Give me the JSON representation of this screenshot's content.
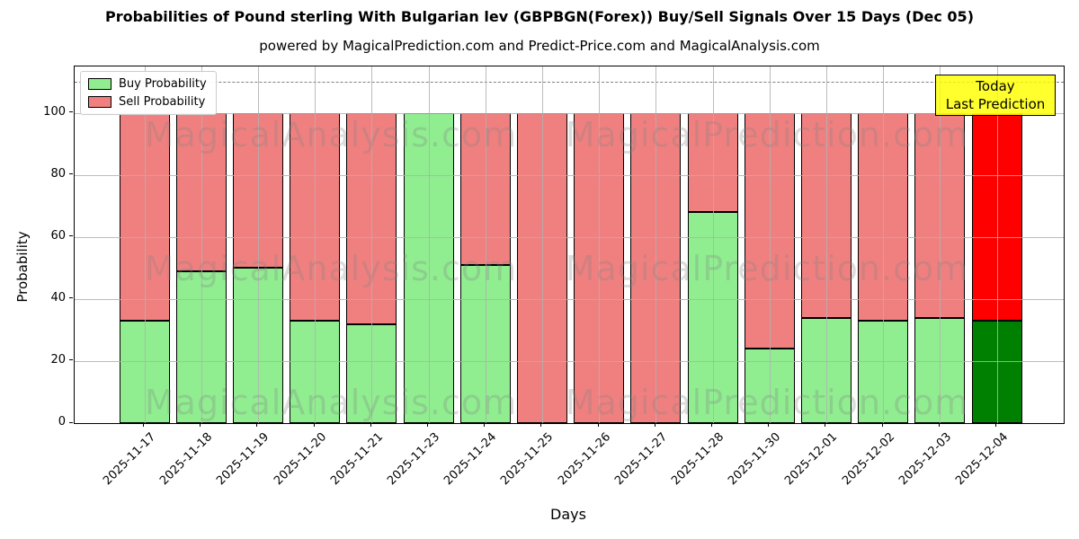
{
  "chart_data": {
    "type": "bar",
    "stacked": true,
    "title": "Probabilities of Pound sterling With Bulgarian lev (GBPBGN(Forex)) Buy/Sell Signals Over 15 Days (Dec 05)",
    "subtitle": "powered by MagicalPrediction.com and Predict-Price.com and MagicalAnalysis.com",
    "xlabel": "Days",
    "ylabel": "Probability",
    "categories": [
      "2025-11-17",
      "2025-11-18",
      "2025-11-19",
      "2025-11-20",
      "2025-11-21",
      "2025-11-23",
      "2025-11-24",
      "2025-11-25",
      "2025-11-26",
      "2025-11-27",
      "2025-11-28",
      "2025-11-30",
      "2025-12-01",
      "2025-12-02",
      "2025-12-03",
      "2025-12-04"
    ],
    "series": [
      {
        "name": "Buy Probability",
        "color": "#90EE90",
        "today_color": "#008000",
        "values": [
          33,
          49,
          50,
          33,
          32,
          100,
          51,
          0,
          0,
          0,
          68,
          24,
          34,
          33,
          34,
          33
        ]
      },
      {
        "name": "Sell Probability",
        "color": "#F08080",
        "today_color": "#FF0000",
        "values": [
          67,
          51,
          50,
          67,
          68,
          0,
          49,
          100,
          100,
          100,
          32,
          76,
          66,
          67,
          66,
          67
        ]
      }
    ],
    "today_index": 15,
    "ylim": [
      0,
      115
    ],
    "yticks": [
      0,
      20,
      40,
      60,
      80,
      100
    ],
    "grid": true,
    "dashed_line_y": 110,
    "legend_position": "upper left",
    "annotation": {
      "lines": [
        "Today",
        "Last Prediction"
      ],
      "bg_color": "#FFFF00"
    },
    "watermarks": [
      "MagicalAnalysis.com",
      "MagicalPrediction.com"
    ],
    "edge_color": "#000000"
  }
}
